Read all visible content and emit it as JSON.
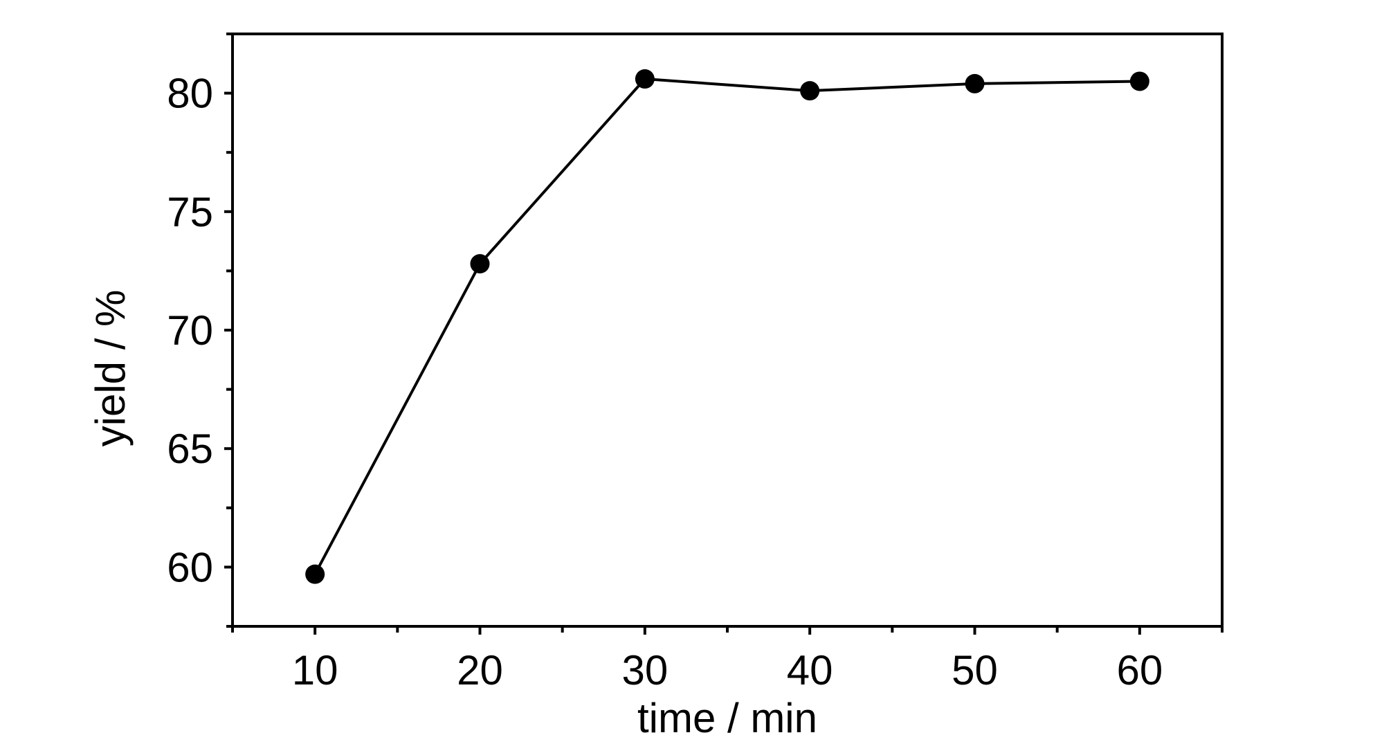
{
  "chart_data": {
    "type": "line",
    "title": "",
    "xlabel": "time / min",
    "ylabel": "yield / %",
    "xlim": [
      5,
      65
    ],
    "ylim": [
      57.5,
      82.5
    ],
    "xticks": [
      10,
      20,
      30,
      40,
      50,
      60
    ],
    "xticks_minor": [
      5,
      15,
      25,
      35,
      45,
      55,
      65
    ],
    "yticks": [
      60,
      65,
      70,
      75,
      80
    ],
    "yticks_minor": [
      57.5,
      62.5,
      67.5,
      72.5,
      77.5,
      82.5
    ],
    "grid": false,
    "legend": "none",
    "series": [
      {
        "x": [
          10,
          20,
          30,
          40,
          50,
          60
        ],
        "y": [
          59.7,
          72.8,
          80.6,
          80.1,
          80.4,
          80.5
        ],
        "color": "#000000",
        "marker": "filled-circle"
      }
    ]
  }
}
